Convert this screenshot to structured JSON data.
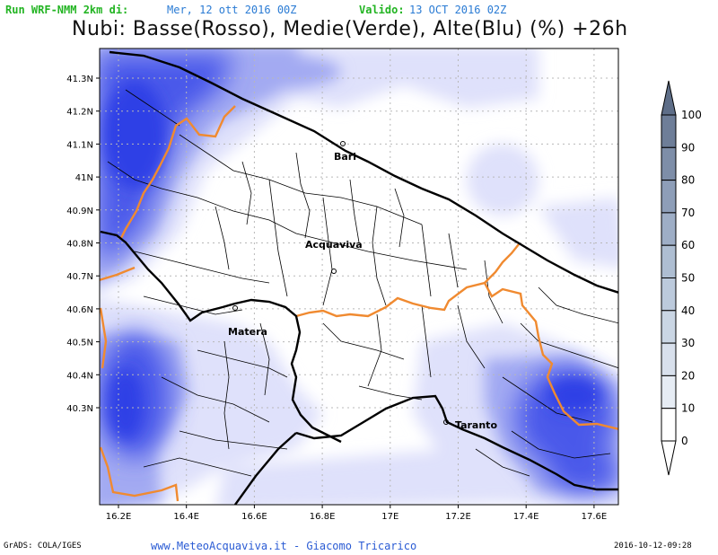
{
  "header": {
    "run_label": "Run WRF-NMM 2km di:",
    "run_date": "Mer, 12 ott 2016 00Z",
    "valid_label": "Valido:",
    "valid_date": "13 OCT 2016 02Z",
    "title": "Nubi: Basse(Rosso), Medie(Verde), Alte(Blu) (%) +26h"
  },
  "map": {
    "lat_labels": [
      "41.3N",
      "41.2N",
      "41.1N",
      "41N",
      "40.9N",
      "40.8N",
      "40.7N",
      "40.6N",
      "40.5N",
      "40.4N",
      "40.3N"
    ],
    "lon_labels": [
      "16.2E",
      "16.4E",
      "16.6E",
      "16.8E",
      "17E",
      "17.2E",
      "17.4E",
      "17.6E"
    ],
    "cities": {
      "bari": "Bari",
      "acquaviva": "Acquaviva",
      "matera": "Matera",
      "taranto": "Taranto"
    },
    "colors": {
      "coast": "#000000",
      "region_border": "#f08a30",
      "high_cloud": "#2a3ae8",
      "grid": "#b8b8b8"
    }
  },
  "colorbar": {
    "labels": [
      "100",
      "90",
      "80",
      "70",
      "60",
      "50",
      "40",
      "30",
      "20",
      "10",
      "0"
    ],
    "colors": [
      "#5e6e88",
      "#6e7e98",
      "#7e8ea8",
      "#8e9eb8",
      "#9eaec6",
      "#aebed2",
      "#bccadc",
      "#cad6e4",
      "#d8e0ec",
      "#e6ecf4",
      "#ffffff"
    ]
  },
  "footer": {
    "left": "GrADS: COLA/IGES",
    "center": "www.MeteoAcquaviva.it  -  Giacomo Tricarico",
    "right": "2016-10-12-09:28"
  }
}
